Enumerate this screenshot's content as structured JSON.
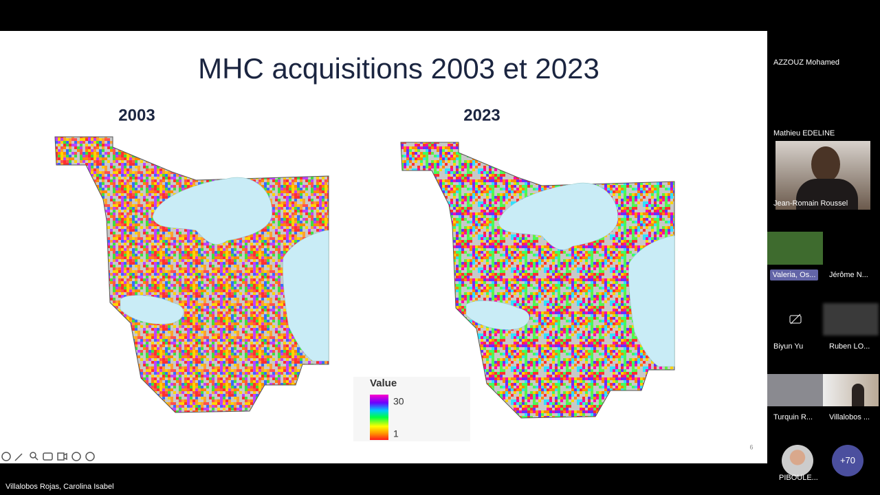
{
  "slide": {
    "title": "MHC acquisitions 2003 et 2023",
    "panels": [
      {
        "label": "2003"
      },
      {
        "label": "2023"
      }
    ],
    "legend": {
      "title": "Value",
      "max": 30,
      "min": 1
    },
    "page_number": 6
  },
  "participants": [
    "AZZOUZ Mohamed",
    "Mathieu EDELINE",
    "Jean-Romain Roussel",
    "Valeria, Os...",
    "Jérôme N...",
    "Biyun Yu",
    "Ruben LO...",
    "Turquin R...",
    "Villalobos ...",
    "PIBOULE..."
  ],
  "overflow": "+70",
  "presenter": "Villalobos Rojas, Carolina Isabel"
}
